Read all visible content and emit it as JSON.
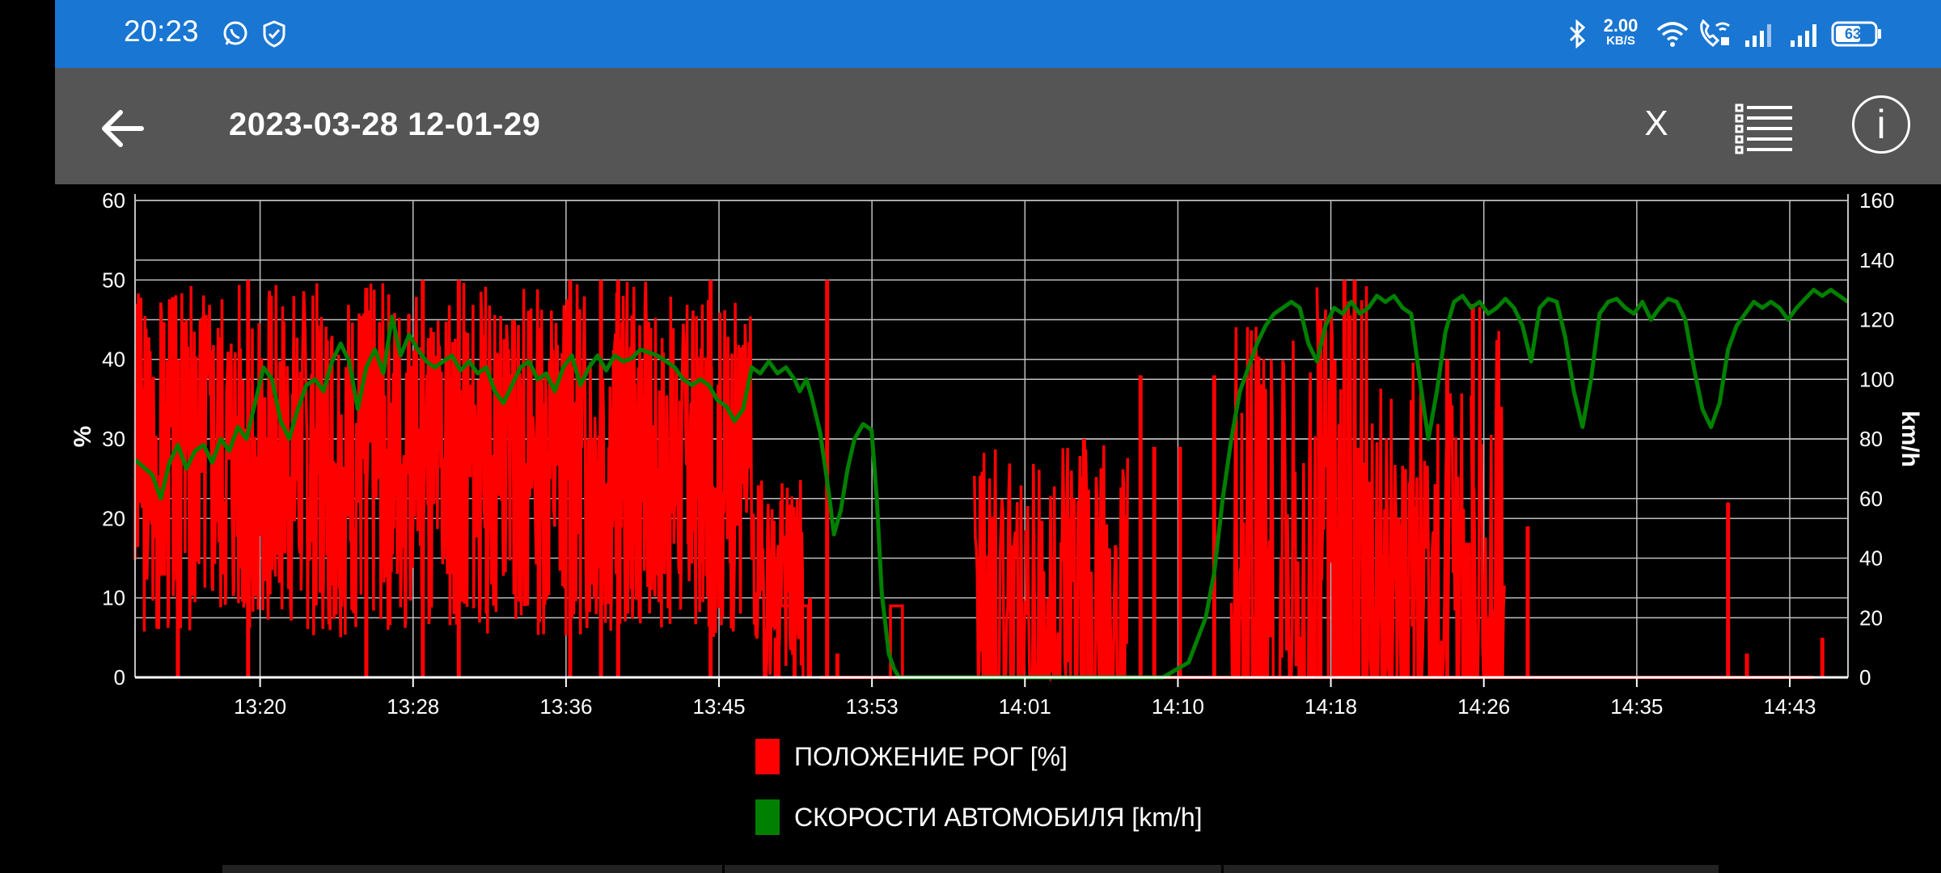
{
  "status_bar": {
    "time": "20:23",
    "net_speed_value": "2.00",
    "net_speed_unit": "KB/S",
    "battery": "63",
    "icons": [
      "whatsapp-icon",
      "shield-icon",
      "bluetooth-icon",
      "wifi-icon",
      "wifi-calling-icon",
      "signal-icon",
      "signal-icon",
      "battery-icon"
    ]
  },
  "app_bar": {
    "title": "2023-03-28 12-01-29",
    "close_label": "X",
    "info_label": "i"
  },
  "colors": {
    "throttle": "#ff0000",
    "speed": "#008000",
    "status_bar": "#1976d2",
    "app_bar": "#555555"
  },
  "chart_data": {
    "type": "line",
    "x_tick_labels": [
      "13:20",
      "13:28",
      "13:36",
      "13:45",
      "13:53",
      "14:01",
      "14:10",
      "14:18",
      "14:26",
      "14:35",
      "14:43"
    ],
    "left_axis": {
      "label": "%",
      "range": [
        0,
        60
      ],
      "ticks": [
        0,
        10,
        20,
        30,
        40,
        50,
        60
      ]
    },
    "right_axis": {
      "label": "km/h",
      "range": [
        0,
        160
      ],
      "ticks": [
        0,
        20,
        40,
        60,
        80,
        100,
        120,
        140,
        160
      ]
    },
    "grid": true,
    "legend_position": "bottom",
    "series": [
      {
        "name": "ПОЛОЖЕНИЕ РОГ [%]",
        "axis": "left",
        "color": "#ff0000",
        "segments": [
          {
            "x": [
              0,
              0.03
            ],
            "y": [
              5,
              50
            ],
            "seed": 3
          },
          {
            "x": [
              0.03,
              0.07
            ],
            "y": [
              5,
              50
            ],
            "seed": 5
          },
          {
            "x": [
              0.07,
              0.16
            ],
            "y": [
              5,
              50
            ],
            "seed": 7
          },
          {
            "x": [
              0.16,
              0.22
            ],
            "y": [
              5,
              50
            ],
            "seed": 11
          },
          {
            "x": [
              0.22,
              0.3
            ],
            "y": [
              5,
              50
            ],
            "seed": 13
          },
          {
            "x": [
              0.3,
              0.36
            ],
            "y": [
              5,
              48
            ],
            "seed": 17
          },
          {
            "x": [
              0.36,
              0.39
            ],
            "y": [
              0,
              25
            ],
            "seed": 19
          }
        ],
        "spikes": [
          {
            "x": 0.025,
            "y": 40
          },
          {
            "x": 0.066,
            "y": 50
          },
          {
            "x": 0.135,
            "y": 49
          },
          {
            "x": 0.168,
            "y": 50
          },
          {
            "x": 0.189,
            "y": 50
          },
          {
            "x": 0.254,
            "y": 50
          },
          {
            "x": 0.272,
            "y": 50
          },
          {
            "x": 0.282,
            "y": 50
          },
          {
            "x": 0.336,
            "y": 50
          },
          {
            "x": 0.385,
            "y": 9
          },
          {
            "x": 0.394,
            "y": 10
          },
          {
            "x": 0.404,
            "y": 50
          },
          {
            "x": 0.41,
            "y": 3
          },
          {
            "x": 0.374,
            "y": 5
          }
        ],
        "plateaus": [
          {
            "x0": 0.375,
            "x1": 0.385,
            "y": 9
          },
          {
            "x0": 0.375,
            "x1": 0.378,
            "y": 0
          },
          {
            "x0": 0.376,
            "x1": 0.393,
            "y": 9
          },
          {
            "x0": 0.441,
            "x1": 0.448,
            "y": 9
          }
        ],
        "flats": [
          {
            "x0": 0.4,
            "x1": 0.98,
            "y": 0
          }
        ],
        "later": [
          {
            "x": [
              0.49,
              0.52
            ],
            "y": [
              0,
              30
            ],
            "seed": 23
          },
          {
            "x": [
              0.52,
              0.58
            ],
            "y": [
              0,
              30
            ],
            "seed": 29
          },
          {
            "x": [
              0.64,
              0.69
            ],
            "y": [
              0,
              45
            ],
            "seed": 31
          },
          {
            "x": [
              0.69,
              0.72
            ],
            "y": [
              0,
              50
            ],
            "seed": 37
          },
          {
            "x": [
              0.72,
              0.78
            ],
            "y": [
              0,
              40
            ],
            "seed": 41
          },
          {
            "x": [
              0.78,
              0.8
            ],
            "y": [
              0,
              47
            ],
            "seed": 43
          }
        ],
        "late_spikes": [
          {
            "x": 0.554,
            "y": 30
          },
          {
            "x": 0.587,
            "y": 38
          },
          {
            "x": 0.595,
            "y": 29
          },
          {
            "x": 0.61,
            "y": 29
          },
          {
            "x": 0.63,
            "y": 38
          },
          {
            "x": 0.692,
            "y": 45
          },
          {
            "x": 0.706,
            "y": 50
          },
          {
            "x": 0.712,
            "y": 50
          },
          {
            "x": 0.766,
            "y": 40
          },
          {
            "x": 0.781,
            "y": 47
          },
          {
            "x": 0.813,
            "y": 19
          },
          {
            "x": 0.93,
            "y": 22
          },
          {
            "x": 0.941,
            "y": 3
          },
          {
            "x": 0.985,
            "y": 5
          }
        ]
      },
      {
        "name": "СКОРОСТИ АВТОМОБИЛЯ [km/h]",
        "axis": "right",
        "color": "#008000",
        "points": [
          [
            0.0,
            73
          ],
          [
            0.01,
            68
          ],
          [
            0.015,
            60
          ],
          [
            0.02,
            72
          ],
          [
            0.025,
            78
          ],
          [
            0.03,
            70
          ],
          [
            0.035,
            76
          ],
          [
            0.04,
            78
          ],
          [
            0.045,
            72
          ],
          [
            0.05,
            80
          ],
          [
            0.055,
            76
          ],
          [
            0.06,
            84
          ],
          [
            0.065,
            80
          ],
          [
            0.07,
            92
          ],
          [
            0.075,
            104
          ],
          [
            0.08,
            100
          ],
          [
            0.085,
            86
          ],
          [
            0.09,
            80
          ],
          [
            0.095,
            90
          ],
          [
            0.1,
            98
          ],
          [
            0.105,
            100
          ],
          [
            0.11,
            96
          ],
          [
            0.115,
            106
          ],
          [
            0.12,
            112
          ],
          [
            0.125,
            106
          ],
          [
            0.13,
            90
          ],
          [
            0.135,
            104
          ],
          [
            0.14,
            110
          ],
          [
            0.145,
            102
          ],
          [
            0.15,
            121
          ],
          [
            0.155,
            108
          ],
          [
            0.16,
            115
          ],
          [
            0.165,
            110
          ],
          [
            0.17,
            106
          ],
          [
            0.175,
            104
          ],
          [
            0.18,
            106
          ],
          [
            0.185,
            108
          ],
          [
            0.19,
            103
          ],
          [
            0.195,
            106
          ],
          [
            0.2,
            102
          ],
          [
            0.205,
            104
          ],
          [
            0.21,
            96
          ],
          [
            0.215,
            92
          ],
          [
            0.22,
            98
          ],
          [
            0.225,
            104
          ],
          [
            0.23,
            106
          ],
          [
            0.235,
            100
          ],
          [
            0.24,
            102
          ],
          [
            0.245,
            96
          ],
          [
            0.25,
            104
          ],
          [
            0.255,
            108
          ],
          [
            0.26,
            98
          ],
          [
            0.265,
            104
          ],
          [
            0.27,
            108
          ],
          [
            0.275,
            103
          ],
          [
            0.28,
            108
          ],
          [
            0.285,
            106
          ],
          [
            0.29,
            107
          ],
          [
            0.295,
            110
          ],
          [
            0.3,
            109
          ],
          [
            0.305,
            108
          ],
          [
            0.31,
            106
          ],
          [
            0.315,
            104
          ],
          [
            0.32,
            100
          ],
          [
            0.325,
            98
          ],
          [
            0.33,
            100
          ],
          [
            0.335,
            98
          ],
          [
            0.34,
            93
          ],
          [
            0.345,
            91
          ],
          [
            0.35,
            86
          ],
          [
            0.355,
            90
          ],
          [
            0.36,
            104
          ],
          [
            0.365,
            102
          ],
          [
            0.37,
            106
          ],
          [
            0.375,
            102
          ],
          [
            0.38,
            104
          ],
          [
            0.385,
            100
          ],
          [
            0.388,
            96
          ],
          [
            0.392,
            100
          ],
          [
            0.395,
            94
          ],
          [
            0.4,
            82
          ],
          [
            0.405,
            62
          ],
          [
            0.408,
            48
          ],
          [
            0.412,
            56
          ],
          [
            0.416,
            70
          ],
          [
            0.42,
            80
          ],
          [
            0.425,
            85
          ],
          [
            0.43,
            83
          ],
          [
            0.433,
            60
          ],
          [
            0.436,
            28
          ],
          [
            0.438,
            18
          ],
          [
            0.44,
            8
          ],
          [
            0.443,
            3
          ],
          [
            0.446,
            0
          ],
          [
            0.5,
            0
          ],
          [
            0.54,
            0
          ],
          [
            0.59,
            0
          ],
          [
            0.6,
            0
          ],
          [
            0.615,
            5
          ],
          [
            0.625,
            20
          ],
          [
            0.63,
            35
          ],
          [
            0.635,
            60
          ],
          [
            0.64,
            80
          ],
          [
            0.645,
            96
          ],
          [
            0.65,
            104
          ],
          [
            0.655,
            112
          ],
          [
            0.66,
            118
          ],
          [
            0.665,
            122
          ],
          [
            0.67,
            124
          ],
          [
            0.675,
            126
          ],
          [
            0.68,
            124
          ],
          [
            0.685,
            112
          ],
          [
            0.69,
            106
          ],
          [
            0.695,
            118
          ],
          [
            0.7,
            124
          ],
          [
            0.705,
            122
          ],
          [
            0.71,
            126
          ],
          [
            0.715,
            122
          ],
          [
            0.72,
            124
          ],
          [
            0.725,
            128
          ],
          [
            0.73,
            126
          ],
          [
            0.735,
            128
          ],
          [
            0.74,
            124
          ],
          [
            0.745,
            122
          ],
          [
            0.75,
            100
          ],
          [
            0.755,
            80
          ],
          [
            0.76,
            96
          ],
          [
            0.765,
            116
          ],
          [
            0.77,
            126
          ],
          [
            0.775,
            128
          ],
          [
            0.78,
            124
          ],
          [
            0.785,
            126
          ],
          [
            0.79,
            122
          ],
          [
            0.795,
            124
          ],
          [
            0.8,
            127
          ],
          [
            0.805,
            124
          ],
          [
            0.81,
            118
          ],
          [
            0.815,
            106
          ],
          [
            0.82,
            124
          ],
          [
            0.825,
            127
          ],
          [
            0.83,
            126
          ],
          [
            0.835,
            114
          ],
          [
            0.84,
            96
          ],
          [
            0.845,
            84
          ],
          [
            0.85,
            100
          ],
          [
            0.855,
            122
          ],
          [
            0.86,
            126
          ],
          [
            0.865,
            127
          ],
          [
            0.87,
            124
          ],
          [
            0.875,
            122
          ],
          [
            0.88,
            126
          ],
          [
            0.885,
            120
          ],
          [
            0.89,
            124
          ],
          [
            0.895,
            127
          ],
          [
            0.9,
            126
          ],
          [
            0.905,
            120
          ],
          [
            0.91,
            104
          ],
          [
            0.915,
            90
          ],
          [
            0.92,
            84
          ],
          [
            0.925,
            92
          ],
          [
            0.93,
            110
          ],
          [
            0.935,
            118
          ],
          [
            0.94,
            122
          ],
          [
            0.945,
            126
          ],
          [
            0.95,
            124
          ],
          [
            0.955,
            126
          ],
          [
            0.96,
            124
          ],
          [
            0.965,
            120
          ],
          [
            0.97,
            124
          ],
          [
            0.975,
            127
          ],
          [
            0.98,
            130
          ],
          [
            0.985,
            128
          ],
          [
            0.99,
            130
          ],
          [
            1.0,
            126
          ]
        ]
      }
    ]
  },
  "legend": [
    {
      "label": "ПОЛОЖЕНИЕ РОГ [%]",
      "color": "#ff0000"
    },
    {
      "label": "СКОРОСТИ АВТОМОБИЛЯ [km/h]",
      "color": "#008000"
    }
  ]
}
